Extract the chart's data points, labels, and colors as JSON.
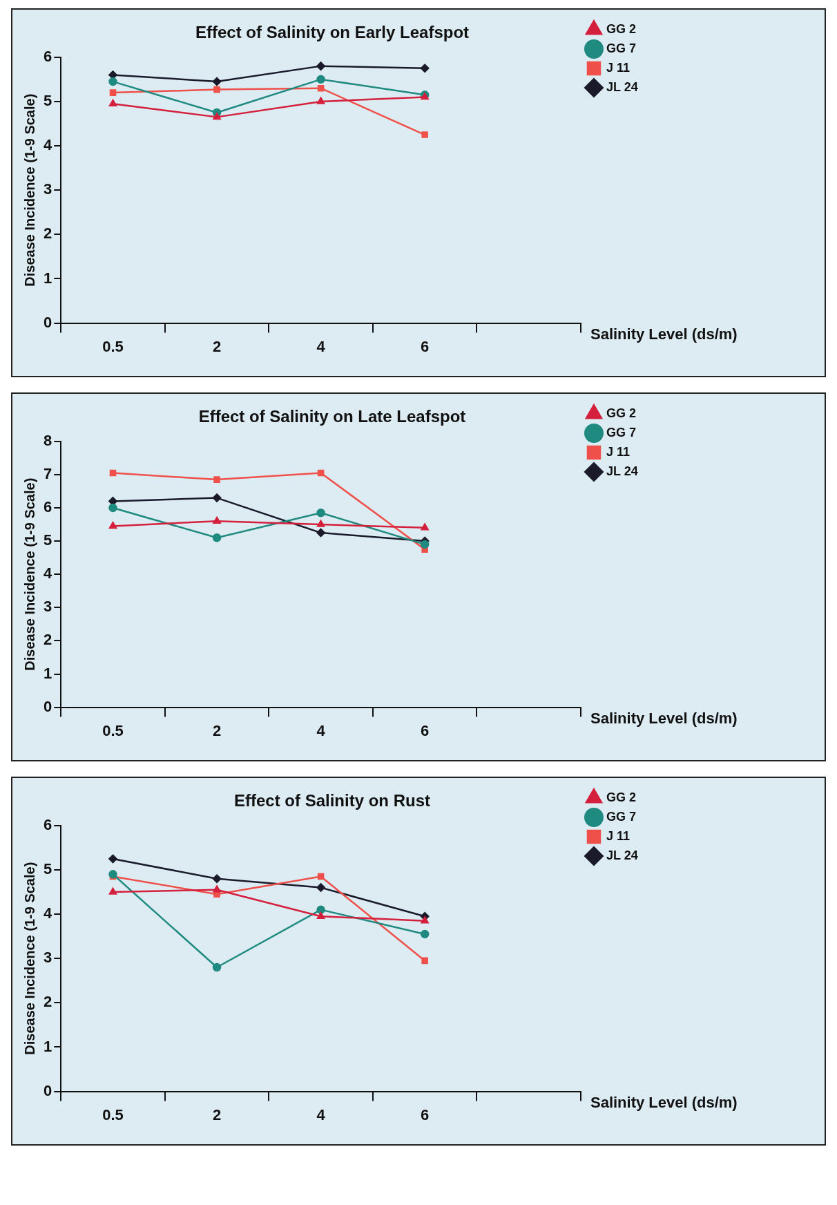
{
  "chart_data": [
    {
      "type": "line",
      "title": "Effect of Salinity on Early Leafspot",
      "xlabel": "Salinity Level (ds/m)",
      "ylabel": "Disease Incidence (1-9 Scale)",
      "categories": [
        "0.5",
        "2",
        "4",
        "6",
        null
      ],
      "ylim": [
        0,
        6
      ],
      "yticks": [
        0,
        1,
        2,
        3,
        4,
        5,
        6
      ],
      "legend": "top right",
      "series": [
        {
          "name": "GG 2",
          "color": "#d4203c",
          "marker": "triangle",
          "values": [
            4.95,
            4.65,
            5.0,
            5.1,
            null
          ]
        },
        {
          "name": "GG 7",
          "color": "#1f8a80",
          "marker": "circle",
          "values": [
            5.45,
            4.75,
            5.5,
            5.15,
            null
          ]
        },
        {
          "name": "J 11",
          "color": "#f0504a",
          "marker": "square",
          "values": [
            5.2,
            5.27,
            5.3,
            4.25,
            null
          ]
        },
        {
          "name": "JL 24",
          "color": "#1a1a2a",
          "marker": "diamond",
          "values": [
            5.6,
            5.45,
            5.8,
            5.75,
            null
          ]
        }
      ]
    },
    {
      "type": "line",
      "title": "Effect of Salinity on Late Leafspot",
      "xlabel": "Salinity Level (ds/m)",
      "ylabel": "Disease Incidence (1-9 Scale)",
      "categories": [
        "0.5",
        "2",
        "4",
        "6",
        null
      ],
      "ylim": [
        0,
        8
      ],
      "yticks": [
        0,
        1,
        2,
        3,
        4,
        5,
        6,
        7,
        8
      ],
      "legend": "top right",
      "series": [
        {
          "name": "GG 2",
          "color": "#d4203c",
          "marker": "triangle",
          "values": [
            5.45,
            5.6,
            5.5,
            5.4,
            null
          ]
        },
        {
          "name": "GG 7",
          "color": "#1f8a80",
          "marker": "circle",
          "values": [
            6.0,
            5.1,
            5.85,
            4.9,
            null
          ]
        },
        {
          "name": "J 11",
          "color": "#f0504a",
          "marker": "square",
          "values": [
            7.05,
            6.85,
            7.05,
            4.75,
            null
          ]
        },
        {
          "name": "JL 24",
          "color": "#1a1a2a",
          "marker": "diamond",
          "values": [
            6.2,
            6.3,
            5.25,
            5.0,
            null
          ]
        }
      ]
    },
    {
      "type": "line",
      "title": "Effect of Salinity on Rust",
      "xlabel": "Salinity Level (ds/m)",
      "ylabel": "Disease Incidence (1-9 Scale)",
      "categories": [
        "0.5",
        "2",
        "4",
        "6",
        null
      ],
      "ylim": [
        0,
        6
      ],
      "yticks": [
        0,
        1,
        2,
        3,
        4,
        5,
        6
      ],
      "legend": "top right",
      "series": [
        {
          "name": "GG 2",
          "color": "#d4203c",
          "marker": "triangle",
          "values": [
            4.5,
            4.55,
            3.95,
            3.85,
            null
          ]
        },
        {
          "name": "GG 7",
          "color": "#1f8a80",
          "marker": "circle",
          "values": [
            4.9,
            2.8,
            4.1,
            3.55,
            null
          ]
        },
        {
          "name": "J 11",
          "color": "#f0504a",
          "marker": "square",
          "values": [
            4.85,
            4.45,
            4.85,
            2.95,
            null
          ]
        },
        {
          "name": "JL 24",
          "color": "#1a1a2a",
          "marker": "diamond",
          "values": [
            5.25,
            4.8,
            4.6,
            3.95,
            null
          ]
        }
      ]
    }
  ]
}
